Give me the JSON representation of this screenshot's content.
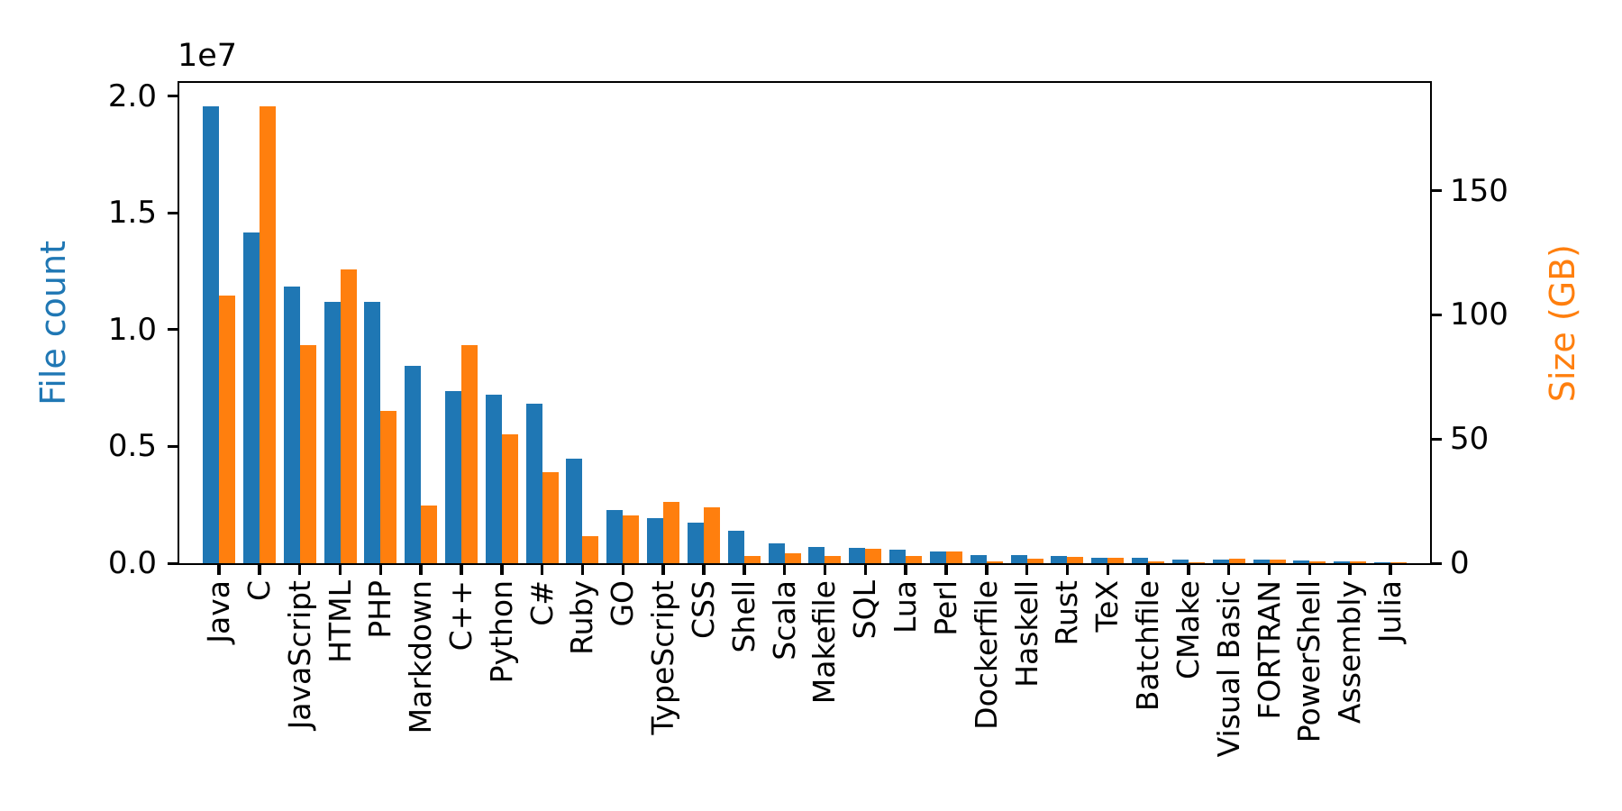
{
  "chart_data": {
    "type": "bar",
    "title": "",
    "categories": [
      "Java",
      "C",
      "JavaScript",
      "HTML",
      "PHP",
      "Markdown",
      "C++",
      "Python",
      "C#",
      "Ruby",
      "GO",
      "TypeScript",
      "CSS",
      "Shell",
      "Scala",
      "Makefile",
      "SQL",
      "Lua",
      "Perl",
      "Dockerfile",
      "Haskell",
      "Rust",
      "TeX",
      "Batchfile",
      "CMake",
      "Visual Basic",
      "FORTRAN",
      "PowerShell",
      "Assembly",
      "Julia"
    ],
    "series": [
      {
        "name": "File count",
        "axis": "left",
        "color": "#1f77b4",
        "values": [
          19548190,
          14143113,
          11839883,
          11178557,
          11177610,
          8464626,
          7380520,
          7226626,
          6811652,
          4473331,
          2265436,
          1940406,
          1734406,
          1385648,
          835755,
          679430,
          656671,
          578554,
          497949,
          366505,
          340380,
          322431,
          251015,
          236945,
          175282,
          155652,
          142038,
          136846,
          82905,
          58317
        ]
      },
      {
        "name": "Size (GB)",
        "axis": "right",
        "color": "#ff7f0e",
        "values": [
          107.7,
          183.83,
          87.82,
          118.12,
          61.41,
          23.09,
          87.73,
          52.03,
          36.83,
          10.95,
          19.28,
          24.59,
          22.67,
          3.01,
          3.87,
          2.92,
          5.67,
          2.81,
          4.7,
          0.71,
          1.85,
          2.68,
          2.15,
          0.7,
          0.54,
          1.91,
          1.62,
          0.69,
          0.78,
          0.29
        ]
      }
    ],
    "left_axis": {
      "label": "File count",
      "color": "#1f77b4",
      "offset_text": "1e7",
      "tick_values": [
        0,
        5000000,
        10000000,
        15000000,
        20000000
      ],
      "tick_labels": [
        "0.0",
        "0.5",
        "1.0",
        "1.5",
        "2.0"
      ],
      "ylim": [
        0,
        20525600
      ]
    },
    "right_axis": {
      "label": "Size (GB)",
      "color": "#ff7f0e",
      "tick_values": [
        0,
        50,
        100,
        150
      ],
      "tick_labels": [
        "0",
        "50",
        "100",
        "150"
      ],
      "ylim": [
        0,
        193.02
      ]
    },
    "xlabel": "",
    "ylabel_left": "File count",
    "ylabel_right": "Size (GB)",
    "grid": false,
    "legend": "none"
  }
}
